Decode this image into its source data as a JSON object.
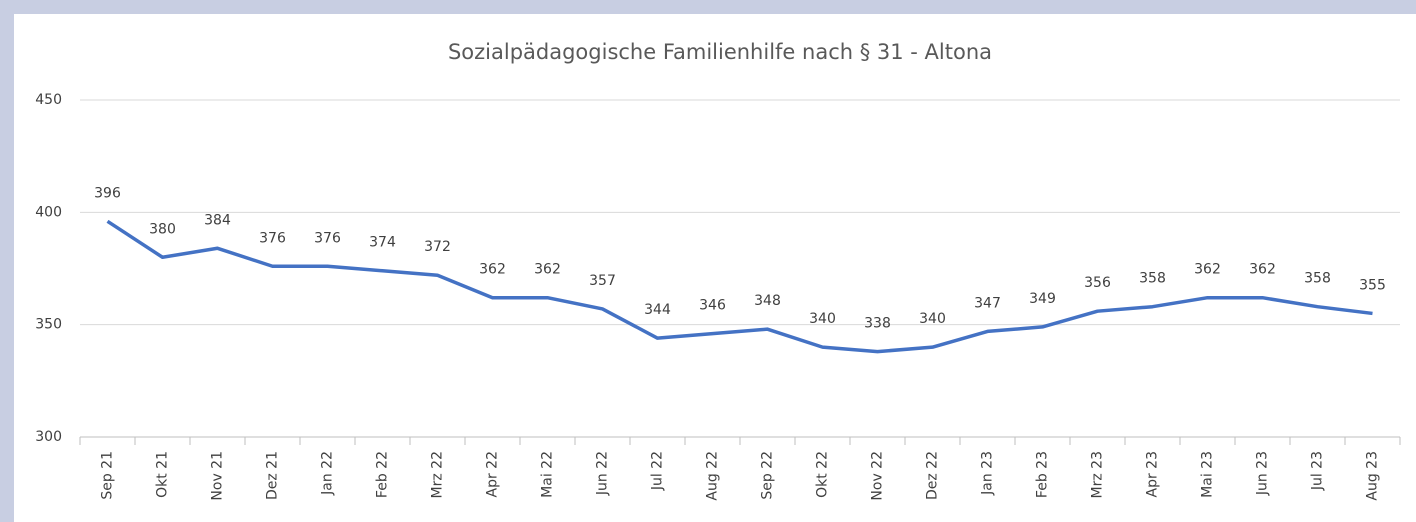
{
  "chart_data": {
    "type": "line",
    "title": "Sozialpädagogische Familienhilfe nach § 31 - Altona",
    "categories": [
      "Sep 21",
      "Okt 21",
      "Nov 21",
      "Dez 21",
      "Jan 22",
      "Feb 22",
      "Mrz 22",
      "Apr 22",
      "Mai 22",
      "Jun 22",
      "Jul 22",
      "Aug 22",
      "Sep 22",
      "Okt 22",
      "Nov 22",
      "Dez 22",
      "Jan 23",
      "Feb 23",
      "Mrz 23",
      "Apr 23",
      "Mai 23",
      "Jun 23",
      "Jul 23",
      "Aug 23"
    ],
    "series": [
      {
        "name": "Altona",
        "color": "#4472c4",
        "values": [
          396,
          380,
          384,
          376,
          376,
          374,
          372,
          362,
          362,
          357,
          344,
          346,
          348,
          340,
          338,
          340,
          347,
          349,
          356,
          358,
          362,
          362,
          358,
          355
        ]
      }
    ],
    "ylim": [
      300,
      450
    ],
    "yticks": [
      300,
      350,
      400,
      450
    ],
    "grid": true
  }
}
